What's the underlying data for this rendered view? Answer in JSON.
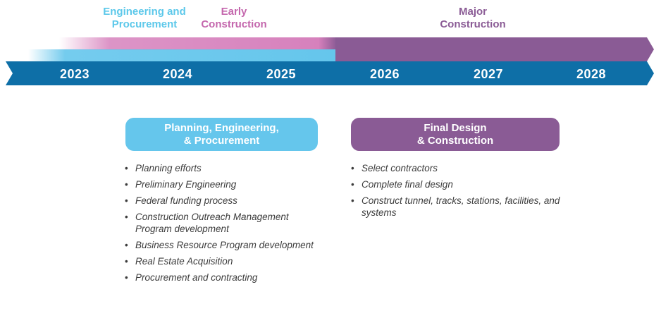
{
  "phases": [
    {
      "line1": "Engineering and",
      "line2": "Procurement",
      "color": "#5cc8ea"
    },
    {
      "line1": "Early",
      "line2": "Construction",
      "color": "#c467ad"
    },
    {
      "line1": "Major",
      "line2": "Construction",
      "color": "#8a5b95"
    }
  ],
  "years": [
    "2023",
    "2024",
    "2025",
    "2026",
    "2027",
    "2028"
  ],
  "colors": {
    "year_band": "#0e6fa7",
    "engineering_bar": "#65c6ec",
    "early_bar": "#d171b4",
    "major_bar": "#8a5b95"
  },
  "cards": {
    "planning": {
      "line1": "Planning, Engineering,",
      "line2": "& Procurement",
      "items": [
        "Planning efforts",
        "Preliminary Engineering",
        "Federal funding process",
        "Construction Outreach Management Program development",
        "Business Resource Program development",
        "Real Estate Acquisition",
        "Procurement and contracting"
      ]
    },
    "final": {
      "line1": "Final Design",
      "line2": "& Construction",
      "items": [
        "Select contractors",
        "Complete final design",
        "Construct tunnel, tracks, stations, facilities, and systems"
      ]
    }
  }
}
